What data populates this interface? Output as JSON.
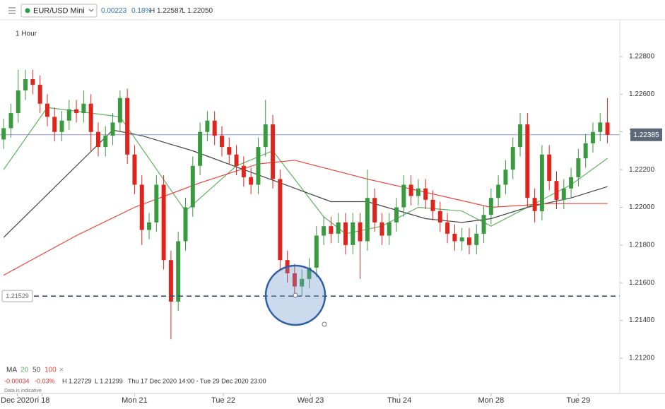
{
  "chart_data": {
    "type": "candlestick",
    "header": {
      "symbol": "EUR/USD Mini",
      "change": "0.00223",
      "change_pct": "0.18%",
      "high": "H 1.22587",
      "low": "L 1.22050"
    },
    "interval": "1 Hour",
    "legend": {
      "title": "MA",
      "close": "×",
      "change": "-0.00034",
      "change_pct": "-0.03%",
      "high": "H 1.22729",
      "low": "L 1.21299",
      "range": "Thu 17 Dec 2020 14:00 - Tue 29 Dec 2020 23:00",
      "note": "Data is indicative"
    },
    "up_color": "#3a9a3f",
    "down_color": "#e0241b",
    "open": [
      1.2236,
      1.2242,
      1.225,
      1.2262,
      1.2268,
      1.2265,
      1.2255,
      1.2248,
      1.224,
      1.2246,
      1.2252,
      1.225,
      1.2255,
      1.224,
      1.2232,
      1.2238,
      1.2245,
      1.2258,
      1.2228,
      1.2212,
      1.2188,
      1.2192,
      1.2212,
      1.2172,
      1.215,
      1.2182,
      1.22,
      1.2222,
      1.224,
      1.2246,
      1.2238,
      1.2232,
      1.2228,
      1.2222,
      1.2216,
      1.2212,
      1.2232,
      1.2244,
      1.2215,
      1.2172,
      1.2165,
      1.2158,
      1.2162,
      1.2168,
      1.2185,
      1.219,
      1.2186,
      1.2192,
      1.218,
      1.2192,
      1.2182,
      1.2205,
      1.2192,
      1.2185,
      1.2192,
      1.22,
      1.2212,
      1.2206,
      1.221,
      1.2204,
      1.2198,
      1.2192,
      1.2186,
      1.2182,
      1.2184,
      1.218,
      1.2186,
      1.2196,
      1.2205,
      1.2212,
      1.222,
      1.2232,
      1.2244,
      1.2205,
      1.2198,
      1.2228,
      1.2214,
      1.2204,
      1.221,
      1.2216,
      1.2226,
      1.2234,
      1.224,
      1.2245
    ],
    "high": [
      1.2247,
      1.2255,
      1.2273,
      1.2273,
      1.2273,
      1.227,
      1.226,
      1.2253,
      1.2251,
      1.2257,
      1.2257,
      1.2262,
      1.226,
      1.2245,
      1.2243,
      1.225,
      1.2262,
      1.2263,
      1.2233,
      1.2217,
      1.2197,
      1.2217,
      1.2217,
      1.2177,
      1.2187,
      1.2205,
      1.2227,
      1.2245,
      1.2251,
      1.2251,
      1.2243,
      1.2237,
      1.2233,
      1.2227,
      1.2221,
      1.2237,
      1.2257,
      1.2249,
      1.222,
      1.2177,
      1.217,
      1.2167,
      1.2173,
      1.219,
      1.2195,
      1.2195,
      1.2197,
      1.2197,
      1.2197,
      1.2197,
      1.222,
      1.221,
      1.2197,
      1.2197,
      1.2205,
      1.2217,
      1.2217,
      1.2215,
      1.2215,
      1.2209,
      1.2203,
      1.2197,
      1.2191,
      1.2189,
      1.2189,
      1.2191,
      1.2201,
      1.221,
      1.2217,
      1.2225,
      1.2237,
      1.225,
      1.225,
      1.221,
      1.2233,
      1.2233,
      1.2219,
      1.2215,
      1.2221,
      1.2231,
      1.2239,
      1.2245,
      1.225,
      1.2258
    ],
    "low": [
      1.2231,
      1.2237,
      1.2245,
      1.2257,
      1.226,
      1.225,
      1.2243,
      1.2235,
      1.2235,
      1.2241,
      1.2245,
      1.2245,
      1.223,
      1.2227,
      1.2227,
      1.2233,
      1.224,
      1.2223,
      1.2207,
      1.218,
      1.2183,
      1.2187,
      1.2167,
      1.213,
      1.2145,
      1.2177,
      1.2195,
      1.2217,
      1.2235,
      1.2233,
      1.2227,
      1.2223,
      1.2217,
      1.2211,
      1.2207,
      1.2207,
      1.2227,
      1.221,
      1.2167,
      1.216,
      1.2153,
      1.2153,
      1.2157,
      1.2163,
      1.218,
      1.2181,
      1.2181,
      1.2175,
      1.2175,
      1.2162,
      1.2177,
      1.2187,
      1.218,
      1.218,
      1.2187,
      1.2195,
      1.2201,
      1.2201,
      1.2199,
      1.2193,
      1.2187,
      1.2181,
      1.2177,
      1.2177,
      1.2175,
      1.2175,
      1.2181,
      1.2191,
      1.22,
      1.2207,
      1.2215,
      1.2227,
      1.22,
      1.2192,
      1.2193,
      1.2209,
      1.2199,
      1.2199,
      1.2205,
      1.2211,
      1.2221,
      1.2229,
      1.2235,
      1.2234
    ],
    "close": [
      1.2242,
      1.225,
      1.2262,
      1.2268,
      1.2265,
      1.2255,
      1.2248,
      1.224,
      1.2246,
      1.2252,
      1.225,
      1.2255,
      1.224,
      1.2232,
      1.2238,
      1.2245,
      1.2258,
      1.2228,
      1.2212,
      1.2188,
      1.2192,
      1.2212,
      1.2172,
      1.215,
      1.2182,
      1.22,
      1.2222,
      1.224,
      1.2246,
      1.2238,
      1.2232,
      1.2228,
      1.2222,
      1.2216,
      1.2212,
      1.2232,
      1.2244,
      1.2215,
      1.2172,
      1.2165,
      1.2158,
      1.2162,
      1.2168,
      1.2185,
      1.219,
      1.2186,
      1.2192,
      1.218,
      1.2192,
      1.2182,
      1.2205,
      1.2192,
      1.2185,
      1.2192,
      1.22,
      1.2212,
      1.2206,
      1.221,
      1.2204,
      1.2198,
      1.2192,
      1.2186,
      1.2182,
      1.2184,
      1.218,
      1.2186,
      1.2196,
      1.2205,
      1.2212,
      1.222,
      1.2232,
      1.2244,
      1.2205,
      1.2198,
      1.2228,
      1.2214,
      1.2204,
      1.221,
      1.2216,
      1.2226,
      1.2234,
      1.224,
      1.2245,
      1.22385
    ],
    "ma_lines": [
      {
        "name": "20",
        "color": "#5fb35f",
        "x": [
          0,
          6,
          16,
          25,
          32,
          37,
          44,
          47,
          52,
          57,
          63,
          67,
          72,
          78,
          83
        ],
        "values": [
          1.222,
          1.2253,
          1.2248,
          1.2198,
          1.2222,
          1.223,
          1.2195,
          1.2186,
          1.219,
          1.22,
          1.2198,
          1.219,
          1.22,
          1.2212,
          1.2226
        ]
      },
      {
        "name": "50",
        "color": "#444444",
        "x": [
          0,
          15,
          19,
          26,
          33,
          38,
          45,
          50,
          58,
          63,
          67,
          72,
          78,
          83
        ],
        "values": [
          1.2184,
          1.2241,
          1.2238,
          1.223,
          1.222,
          1.2213,
          1.2203,
          1.2203,
          1.2194,
          1.2192,
          1.2194,
          1.22,
          1.2205,
          1.2211
        ]
      },
      {
        "name": "100",
        "color": "#e8463c",
        "x": [
          0,
          10,
          18,
          27,
          35,
          40,
          50,
          58,
          67,
          75,
          83
        ],
        "values": [
          1.2164,
          1.2185,
          1.22,
          1.2213,
          1.2223,
          1.2225,
          1.2215,
          1.2208,
          1.22,
          1.2202,
          1.2202
        ]
      }
    ],
    "last_price": {
      "value": 1.22385,
      "label": "1.22385"
    },
    "level": {
      "value": 1.21529,
      "label": "1.21529"
    },
    "xlim": [
      -0.5,
      84.5
    ],
    "xticks": [
      {
        "value": 1.9,
        "label": "Dec 2020"
      },
      {
        "value": 5.3,
        "label": "ri 18"
      },
      {
        "value": 18,
        "label": "Mon 21"
      },
      {
        "value": 30.2,
        "label": "Tue 22"
      },
      {
        "value": 42.2,
        "label": "Wed 23"
      },
      {
        "value": 54.4,
        "label": "Thu 24"
      },
      {
        "value": 67,
        "label": "Mon 28"
      },
      {
        "value": 79,
        "label": "Tue 29"
      }
    ],
    "ylim": [
      1.2102,
      1.231
    ],
    "yticks": [
      {
        "value": 1.228,
        "label": "1.22800"
      },
      {
        "value": 1.226,
        "label": "1.22600"
      },
      {
        "value": 1.224,
        "label": "1.22400"
      },
      {
        "value": 1.222,
        "label": "1.22200"
      },
      {
        "value": 1.22,
        "label": "1.22000"
      },
      {
        "value": 1.218,
        "label": "1.21800"
      },
      {
        "value": 1.216,
        "label": "1.21600"
      },
      {
        "value": 1.214,
        "label": "1.21400"
      },
      {
        "value": 1.212,
        "label": "1.21200"
      }
    ]
  }
}
